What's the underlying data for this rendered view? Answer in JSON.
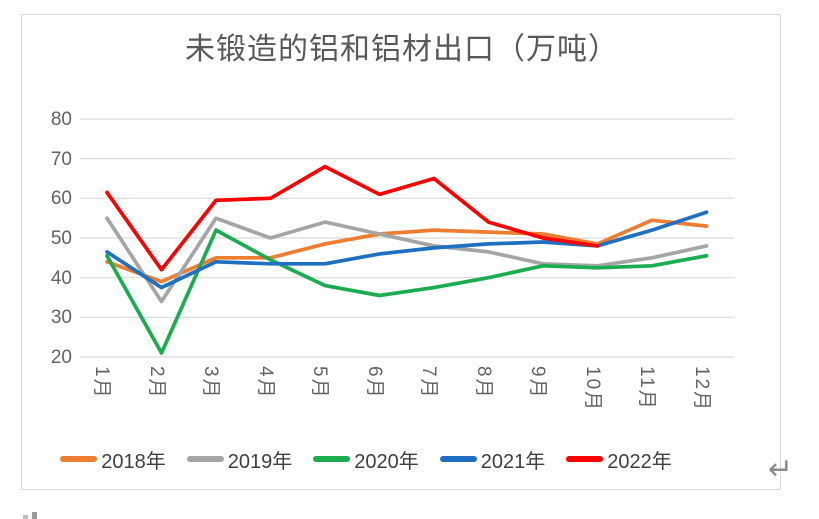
{
  "chart_data": {
    "type": "line",
    "title": "未锻造的铝和铝材出口（万吨）",
    "categories": [
      "1月",
      "2月",
      "3月",
      "4月",
      "5月",
      "6月",
      "7月",
      "8月",
      "9月",
      "10月",
      "11月",
      "12月"
    ],
    "xlabel": "",
    "ylabel": "",
    "ylim": [
      20,
      80
    ],
    "y_ticks": [
      20,
      30,
      40,
      50,
      60,
      70,
      80
    ],
    "grid": true,
    "grid_color": "#d9d9d9",
    "legend_position": "bottom",
    "series": [
      {
        "name": "2018年",
        "color": "#ED7D31",
        "values": [
          44,
          39,
          45,
          45,
          48.5,
          51,
          52,
          51.5,
          51,
          48.5,
          54.5,
          53
        ]
      },
      {
        "name": "2019年",
        "color": "#A5A5A5",
        "values": [
          55,
          34,
          55,
          50,
          54,
          51,
          48,
          46.5,
          43.5,
          43,
          45,
          48
        ]
      },
      {
        "name": "2020年",
        "color": "#1CAC50",
        "values": [
          45.5,
          21,
          52,
          44.5,
          38,
          35.5,
          37.5,
          40,
          43,
          42.5,
          43,
          45.5
        ]
      },
      {
        "name": "2021年",
        "color": "#1F70C1",
        "values": [
          46.5,
          37.5,
          44,
          43.5,
          43.5,
          46,
          47.5,
          48.5,
          49,
          48,
          52,
          56.5
        ]
      },
      {
        "name": "2022年",
        "color": "#FF0000",
        "values": [
          61.5,
          42,
          59.5,
          60,
          68,
          61,
          65,
          54,
          50,
          48,
          null,
          null
        ]
      }
    ]
  },
  "artifacts": {
    "return_mark": "↵"
  }
}
